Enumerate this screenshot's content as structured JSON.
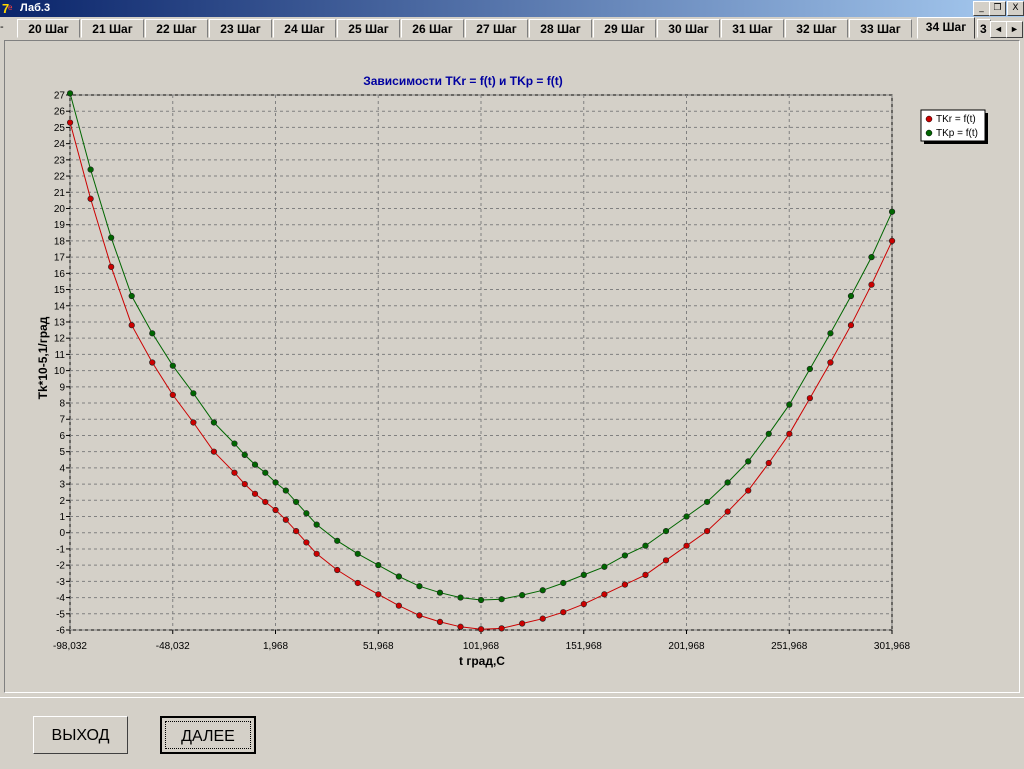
{
  "window": {
    "title": "Лаб.3",
    "minimize": "_",
    "restore": "❐",
    "close": "X"
  },
  "tabs": {
    "items": [
      "20 Шаг",
      "21 Шаг",
      "22 Шаг",
      "23 Шаг",
      "24 Шаг",
      "25 Шаг",
      "26 Шаг",
      "27 Шаг",
      "28 Шаг",
      "29 Шаг",
      "30 Шаг",
      "31 Шаг",
      "32 Шаг",
      "33 Шаг",
      "34 Шаг",
      "3"
    ],
    "active": "34 Шаг",
    "scroll_left": "◄",
    "scroll_right": "►"
  },
  "buttons": {
    "exit": "ВЫХОД",
    "next": "ДАЛЕЕ"
  },
  "chart_data": {
    "type": "line",
    "title": "Зависимости TKr = f(t) и TKp = f(t)",
    "xlabel": "t град,С",
    "ylabel": "Tk*10-5,1/град",
    "xlim": [
      -98.032,
      301.968
    ],
    "ylim": [
      -6,
      27
    ],
    "xticks": [
      "-98,032",
      "-48,032",
      "1,968",
      "51,968",
      "101,968",
      "151,968",
      "201,968",
      "251,968",
      "301,968"
    ],
    "yticks": [
      "-6",
      "-5",
      "-4",
      "-3",
      "-2",
      "-1",
      "0",
      "1",
      "2",
      "3",
      "4",
      "5",
      "6",
      "7",
      "8",
      "9",
      "10",
      "11",
      "12",
      "13",
      "14",
      "15",
      "16",
      "17",
      "18",
      "19",
      "20",
      "21",
      "22",
      "23",
      "24",
      "25",
      "26",
      "27"
    ],
    "grid": true,
    "legend_position": "top-right",
    "series": [
      {
        "name": "TKr = f(t)",
        "color": "#cc0000",
        "x": [
          -98.0,
          -88.0,
          -78.0,
          -68.0,
          -58.0,
          -48.0,
          -38.0,
          -28.0,
          -18.0,
          -13.0,
          -8.0,
          -3.0,
          2.0,
          7.0,
          12.0,
          17.0,
          22.0,
          32.0,
          42.0,
          52.0,
          62.0,
          72.0,
          82.0,
          92.0,
          102.0,
          112.0,
          122.0,
          132.0,
          142.0,
          152.0,
          162.0,
          172.0,
          182.0,
          192.0,
          202.0,
          212.0,
          222.0,
          232.0,
          242.0,
          252.0,
          262.0,
          272.0,
          282.0,
          292.0,
          302.0
        ],
        "y": [
          25.3,
          20.6,
          16.4,
          12.8,
          10.5,
          8.5,
          6.8,
          5.0,
          3.7,
          3.0,
          2.4,
          1.9,
          1.4,
          0.8,
          0.1,
          -0.6,
          -1.3,
          -2.3,
          -3.1,
          -3.8,
          -4.5,
          -5.1,
          -5.5,
          -5.8,
          -5.95,
          -5.9,
          -5.6,
          -5.3,
          -4.9,
          -4.4,
          -3.8,
          -3.2,
          -2.6,
          -1.7,
          -0.8,
          0.1,
          1.3,
          2.6,
          4.3,
          6.1,
          8.3,
          10.5,
          12.8,
          15.3,
          18.0
        ]
      },
      {
        "name": "TKp = f(t)",
        "color": "#006600",
        "x": [
          -98.0,
          -88.0,
          -78.0,
          -68.0,
          -58.0,
          -48.0,
          -38.0,
          -28.0,
          -18.0,
          -13.0,
          -8.0,
          -3.0,
          2.0,
          7.0,
          12.0,
          17.0,
          22.0,
          32.0,
          42.0,
          52.0,
          62.0,
          72.0,
          82.0,
          92.0,
          102.0,
          112.0,
          122.0,
          132.0,
          142.0,
          152.0,
          162.0,
          172.0,
          182.0,
          192.0,
          202.0,
          212.0,
          222.0,
          232.0,
          242.0,
          252.0,
          262.0,
          272.0,
          282.0,
          292.0,
          302.0
        ],
        "y": [
          27.1,
          22.4,
          18.2,
          14.6,
          12.3,
          10.3,
          8.6,
          6.8,
          5.5,
          4.8,
          4.2,
          3.7,
          3.1,
          2.6,
          1.9,
          1.2,
          0.5,
          -0.5,
          -1.3,
          -2.0,
          -2.7,
          -3.3,
          -3.7,
          -4.0,
          -4.15,
          -4.1,
          -3.85,
          -3.55,
          -3.1,
          -2.6,
          -2.1,
          -1.4,
          -0.8,
          0.1,
          1.0,
          1.9,
          3.1,
          4.4,
          6.1,
          7.9,
          10.1,
          12.3,
          14.6,
          17.0,
          19.8
        ]
      }
    ]
  }
}
